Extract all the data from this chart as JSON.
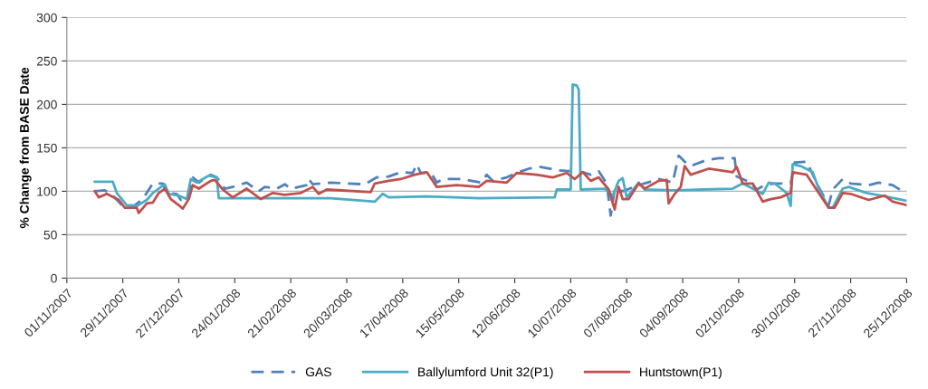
{
  "chart_data": {
    "type": "line",
    "ylabel": "% Change from BASE Date",
    "ylim": [
      0,
      300
    ],
    "yticks": [
      0,
      50,
      100,
      150,
      200,
      250,
      300
    ],
    "xlim": [
      "2007-11-01",
      "2008-12-25"
    ],
    "xticks": [
      {
        "value": "2007-11-01",
        "label": "01/11/2007"
      },
      {
        "value": "2007-11-29",
        "label": "29/11/2007"
      },
      {
        "value": "2007-12-27",
        "label": "27/12/2007"
      },
      {
        "value": "2008-01-24",
        "label": "24/01/2008"
      },
      {
        "value": "2008-02-21",
        "label": "21/02/2008"
      },
      {
        "value": "2008-03-20",
        "label": "20/03/2008"
      },
      {
        "value": "2008-04-17",
        "label": "17/04/2008"
      },
      {
        "value": "2008-05-15",
        "label": "15/05/2008"
      },
      {
        "value": "2008-06-12",
        "label": "12/06/2008"
      },
      {
        "value": "2008-07-10",
        "label": "10/07/2008"
      },
      {
        "value": "2008-08-07",
        "label": "07/08/2008"
      },
      {
        "value": "2008-09-04",
        "label": "04/09/2008"
      },
      {
        "value": "2008-10-02",
        "label": "02/10/2008"
      },
      {
        "value": "2008-10-30",
        "label": "30/10/2008"
      },
      {
        "value": "2008-11-27",
        "label": "27/11/2008"
      },
      {
        "value": "2008-12-25",
        "label": "25/12/2008"
      }
    ],
    "grid": "y",
    "legend": "bottom",
    "marker": "none",
    "series": [
      {
        "name": "GAS",
        "color": "#4f81bd",
        "line_style": "dashed",
        "x": [
          "2007-11-15",
          "2007-11-20",
          "2007-11-24",
          "2007-11-29",
          "2007-12-05",
          "2007-12-09",
          "2007-12-14",
          "2007-12-19",
          "2007-12-21",
          "2007-12-26",
          "2007-12-28",
          "2007-12-31",
          "2008-01-03",
          "2008-01-06",
          "2008-01-12",
          "2008-01-15",
          "2008-01-19",
          "2008-01-23",
          "2008-01-30",
          "2008-02-05",
          "2008-02-08",
          "2008-02-14",
          "2008-02-18",
          "2008-02-21",
          "2008-02-29",
          "2008-03-01",
          "2008-03-03",
          "2008-03-12",
          "2008-03-29",
          "2008-04-04",
          "2008-04-10",
          "2008-04-16",
          "2008-04-22",
          "2008-04-24",
          "2008-04-26",
          "2008-05-01",
          "2008-05-04",
          "2008-05-07",
          "2008-05-17",
          "2008-05-26",
          "2008-05-29",
          "2008-06-01",
          "2008-06-08",
          "2008-06-14",
          "2008-06-19",
          "2008-06-25",
          "2008-07-04",
          "2008-07-16",
          "2008-07-20",
          "2008-07-24",
          "2008-07-28",
          "2008-07-30",
          "2008-08-01",
          "2008-08-05",
          "2008-08-13",
          "2008-08-23",
          "2008-08-30",
          "2008-09-02",
          "2008-09-05",
          "2008-09-08",
          "2008-09-16",
          "2008-09-22",
          "2008-09-30",
          "2008-10-01",
          "2008-10-08",
          "2008-10-11",
          "2008-10-15",
          "2008-10-20",
          "2008-10-28",
          "2008-10-30",
          "2008-11-05",
          "2008-11-11",
          "2008-11-16",
          "2008-11-18",
          "2008-11-23",
          "2008-11-27",
          "2008-12-06",
          "2008-12-11",
          "2008-12-18",
          "2008-12-25"
        ],
        "values": [
          100,
          101,
          95,
          83,
          84,
          91,
          109,
          109,
          98,
          97,
          90,
          91,
          116,
          110,
          119,
          116,
          103,
          105,
          110,
          100,
          105,
          103,
          108,
          103,
          107,
          114,
          108,
          110,
          108,
          116,
          117,
          122,
          121,
          131,
          121,
          122,
          110,
          114,
          114,
          110,
          119,
          112,
          116,
          122,
          126,
          128,
          124,
          122,
          119,
          123,
          109,
          72,
          103,
          100,
          107,
          114,
          110,
          141,
          134,
          129,
          136,
          138,
          138,
          117,
          110,
          102,
          107,
          109,
          109,
          133,
          134,
          105,
          84,
          102,
          114,
          109,
          107,
          110,
          107,
          97
        ]
      },
      {
        "name": "Ballylumford Unit 32(P1)",
        "color": "#4bacc6",
        "line_style": "solid",
        "x": [
          "2007-11-15",
          "2007-11-24",
          "2007-11-26",
          "2007-12-01",
          "2007-12-06",
          "2007-12-11",
          "2007-12-14",
          "2007-12-20",
          "2007-12-22",
          "2007-12-27",
          "2007-12-31",
          "2008-01-02",
          "2008-01-05",
          "2008-01-11",
          "2008-01-15",
          "2008-01-16",
          "2008-02-06",
          "2008-03-12",
          "2008-04-03",
          "2008-04-07",
          "2008-04-10",
          "2008-04-29",
          "2008-05-25",
          "2008-07-02",
          "2008-07-03",
          "2008-07-10",
          "2008-07-11",
          "2008-07-13",
          "2008-07-14",
          "2008-07-15",
          "2008-07-27",
          "2008-07-31",
          "2008-08-03",
          "2008-08-05",
          "2008-08-07",
          "2008-08-13",
          "2008-08-16",
          "2008-08-30",
          "2008-09-14",
          "2008-09-29",
          "2008-10-04",
          "2008-10-09",
          "2008-10-14",
          "2008-10-17",
          "2008-10-20",
          "2008-10-26",
          "2008-10-28",
          "2008-10-29",
          "2008-11-02",
          "2008-11-08",
          "2008-11-11",
          "2008-11-16",
          "2008-11-18",
          "2008-11-23",
          "2008-11-26",
          "2008-12-05",
          "2008-12-12",
          "2008-12-21",
          "2008-12-25"
        ],
        "values": [
          111,
          111,
          98,
          84,
          83,
          90,
          98,
          108,
          97,
          95,
          91,
          114,
          110,
          118,
          116,
          92,
          92,
          92,
          88,
          97,
          93,
          94,
          92,
          93,
          102,
          102,
          223,
          222,
          217,
          102,
          103,
          95,
          112,
          115,
          93,
          110,
          102,
          101,
          102,
          103,
          109,
          103,
          97,
          110,
          109,
          98,
          83,
          131,
          129,
          122,
          103,
          81,
          81,
          103,
          105,
          98,
          95,
          91,
          89
        ]
      },
      {
        "name": "Huntstown(P1)",
        "color": "#c0504d",
        "line_style": "solid",
        "x": [
          "2007-11-15",
          "2007-11-17",
          "2007-11-21",
          "2007-11-27",
          "2007-11-30",
          "2007-12-06",
          "2007-12-07",
          "2007-12-11",
          "2007-12-14",
          "2007-12-17",
          "2007-12-20",
          "2007-12-23",
          "2007-12-27",
          "2007-12-29",
          "2008-01-01",
          "2008-01-03",
          "2008-01-06",
          "2008-01-12",
          "2008-01-14",
          "2008-01-18",
          "2008-01-23",
          "2008-01-30",
          "2008-02-06",
          "2008-02-12",
          "2008-02-18",
          "2008-02-26",
          "2008-03-03",
          "2008-03-06",
          "2008-03-10",
          "2008-04-01",
          "2008-04-03",
          "2008-04-10",
          "2008-04-16",
          "2008-04-23",
          "2008-04-29",
          "2008-05-02",
          "2008-05-04",
          "2008-05-14",
          "2008-05-25",
          "2008-05-29",
          "2008-06-08",
          "2008-06-13",
          "2008-06-23",
          "2008-07-01",
          "2008-07-08",
          "2008-07-12",
          "2008-07-16",
          "2008-07-20",
          "2008-07-24",
          "2008-07-29",
          "2008-08-01",
          "2008-08-03",
          "2008-08-05",
          "2008-08-08",
          "2008-08-13",
          "2008-08-16",
          "2008-08-23",
          "2008-08-27",
          "2008-08-28",
          "2008-08-31",
          "2008-09-03",
          "2008-09-05",
          "2008-09-08",
          "2008-09-17",
          "2008-09-29",
          "2008-10-01",
          "2008-10-04",
          "2008-10-09",
          "2008-10-14",
          "2008-10-18",
          "2008-10-23",
          "2008-10-28",
          "2008-10-29",
          "2008-11-05",
          "2008-11-11",
          "2008-11-16",
          "2008-11-19",
          "2008-11-23",
          "2008-11-27",
          "2008-12-06",
          "2008-12-14",
          "2008-12-18",
          "2008-12-25"
        ],
        "values": [
          100,
          93,
          97,
          90,
          81,
          81,
          75,
          86,
          87,
          98,
          103,
          91,
          84,
          80,
          91,
          107,
          103,
          112,
          113,
          102,
          93,
          103,
          91,
          98,
          96,
          98,
          105,
          97,
          102,
          99,
          109,
          112,
          114,
          119,
          122,
          112,
          105,
          107,
          105,
          112,
          110,
          121,
          119,
          116,
          121,
          114,
          122,
          112,
          116,
          102,
          79,
          105,
          91,
          91,
          109,
          103,
          112,
          113,
          86,
          97,
          105,
          129,
          119,
          126,
          122,
          128,
          109,
          109,
          88,
          91,
          93,
          98,
          122,
          119,
          98,
          81,
          81,
          98,
          97,
          90,
          95,
          88,
          84
        ]
      }
    ]
  }
}
